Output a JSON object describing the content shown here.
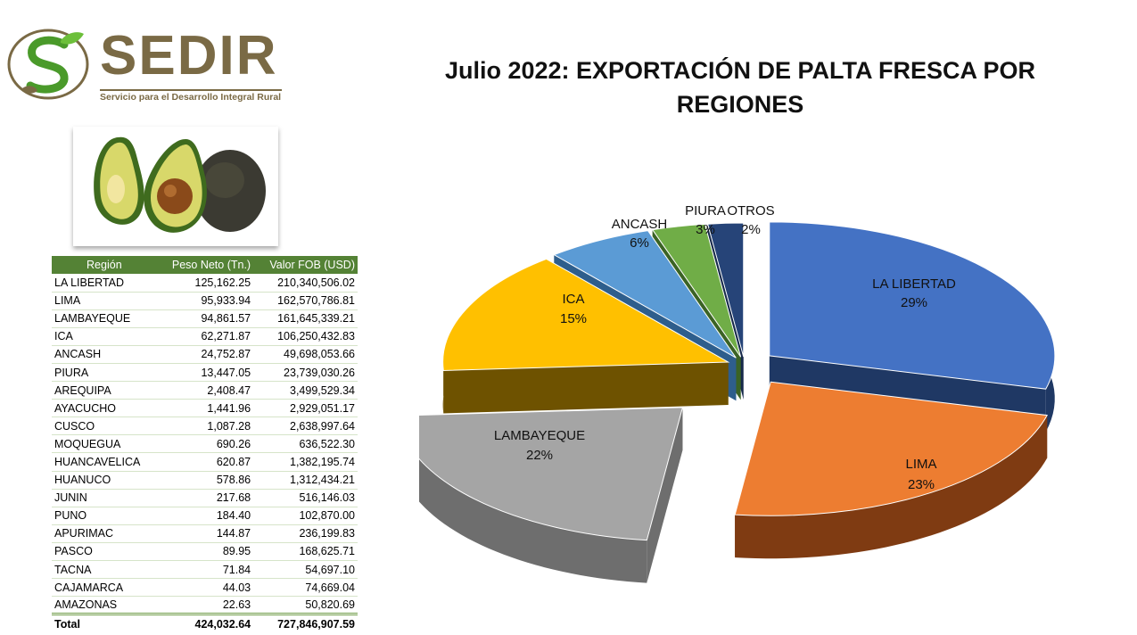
{
  "logo": {
    "name": "SEDIR",
    "tagline": "Servicio para el Desarrollo Integral Rural"
  },
  "title": "Julio 2022: EXPORTACIÓN DE PALTA FRESCA POR REGIONES",
  "table": {
    "headers": [
      "Región",
      "Peso Neto (Tn.)",
      "Valor FOB (USD)"
    ],
    "rows": [
      [
        "LA LIBERTAD",
        "125,162.25",
        "210,340,506.02"
      ],
      [
        "LIMA",
        "95,933.94",
        "162,570,786.81"
      ],
      [
        "LAMBAYEQUE",
        "94,861.57",
        "161,645,339.21"
      ],
      [
        "ICA",
        "62,271.87",
        "106,250,432.83"
      ],
      [
        "ANCASH",
        "24,752.87",
        "49,698,053.66"
      ],
      [
        "PIURA",
        "13,447.05",
        "23,739,030.26"
      ],
      [
        "AREQUIPA",
        "2,408.47",
        "3,499,529.34"
      ],
      [
        "AYACUCHO",
        "1,441.96",
        "2,929,051.17"
      ],
      [
        "CUSCO",
        "1,087.28",
        "2,638,997.64"
      ],
      [
        "MOQUEGUA",
        "690.26",
        "636,522.30"
      ],
      [
        "HUANCAVELICA",
        "620.87",
        "1,382,195.74"
      ],
      [
        "HUANUCO",
        "578.86",
        "1,312,434.21"
      ],
      [
        "JUNIN",
        "217.68",
        "516,146.03"
      ],
      [
        "PUNO",
        "184.40",
        "102,870.00"
      ],
      [
        "APURIMAC",
        "144.87",
        "236,199.83"
      ],
      [
        "PASCO",
        "89.95",
        "168,625.71"
      ],
      [
        "TACNA",
        "71.84",
        "54,697.10"
      ],
      [
        "CAJAMARCA",
        "44.03",
        "74,669.04"
      ],
      [
        "AMAZONAS",
        "22.63",
        "50,820.69"
      ]
    ],
    "total": [
      "Total",
      "424,032.64",
      "727,846,907.59"
    ]
  },
  "chart_data": {
    "type": "pie",
    "title": "Julio 2022: EXPORTACIÓN DE PALTA FRESCA POR REGIONES",
    "slices": [
      {
        "label": "LA LIBERTAD",
        "value": 29,
        "percent_label": "29%",
        "color": "#4472C4",
        "side": "#1F3864"
      },
      {
        "label": "LIMA",
        "value": 23,
        "percent_label": "23%",
        "color": "#ED7D31",
        "side": "#7F3B12"
      },
      {
        "label": "LAMBAYEQUE",
        "value": 22,
        "percent_label": "22%",
        "color": "#A5A5A5",
        "side": "#6E6E6E"
      },
      {
        "label": "ICA",
        "value": 15,
        "percent_label": "15%",
        "color": "#FFC000",
        "side": "#6E5200"
      },
      {
        "label": "ANCASH",
        "value": 6,
        "percent_label": "6%",
        "color": "#5B9BD5",
        "side": "#2E5E8C"
      },
      {
        "label": "PIURA",
        "value": 3,
        "percent_label": "3%",
        "color": "#70AD47",
        "side": "#3B6325"
      },
      {
        "label": "OTROS",
        "value": 2,
        "percent_label": "2%",
        "color": "#264478",
        "side": "#16294A"
      }
    ]
  }
}
